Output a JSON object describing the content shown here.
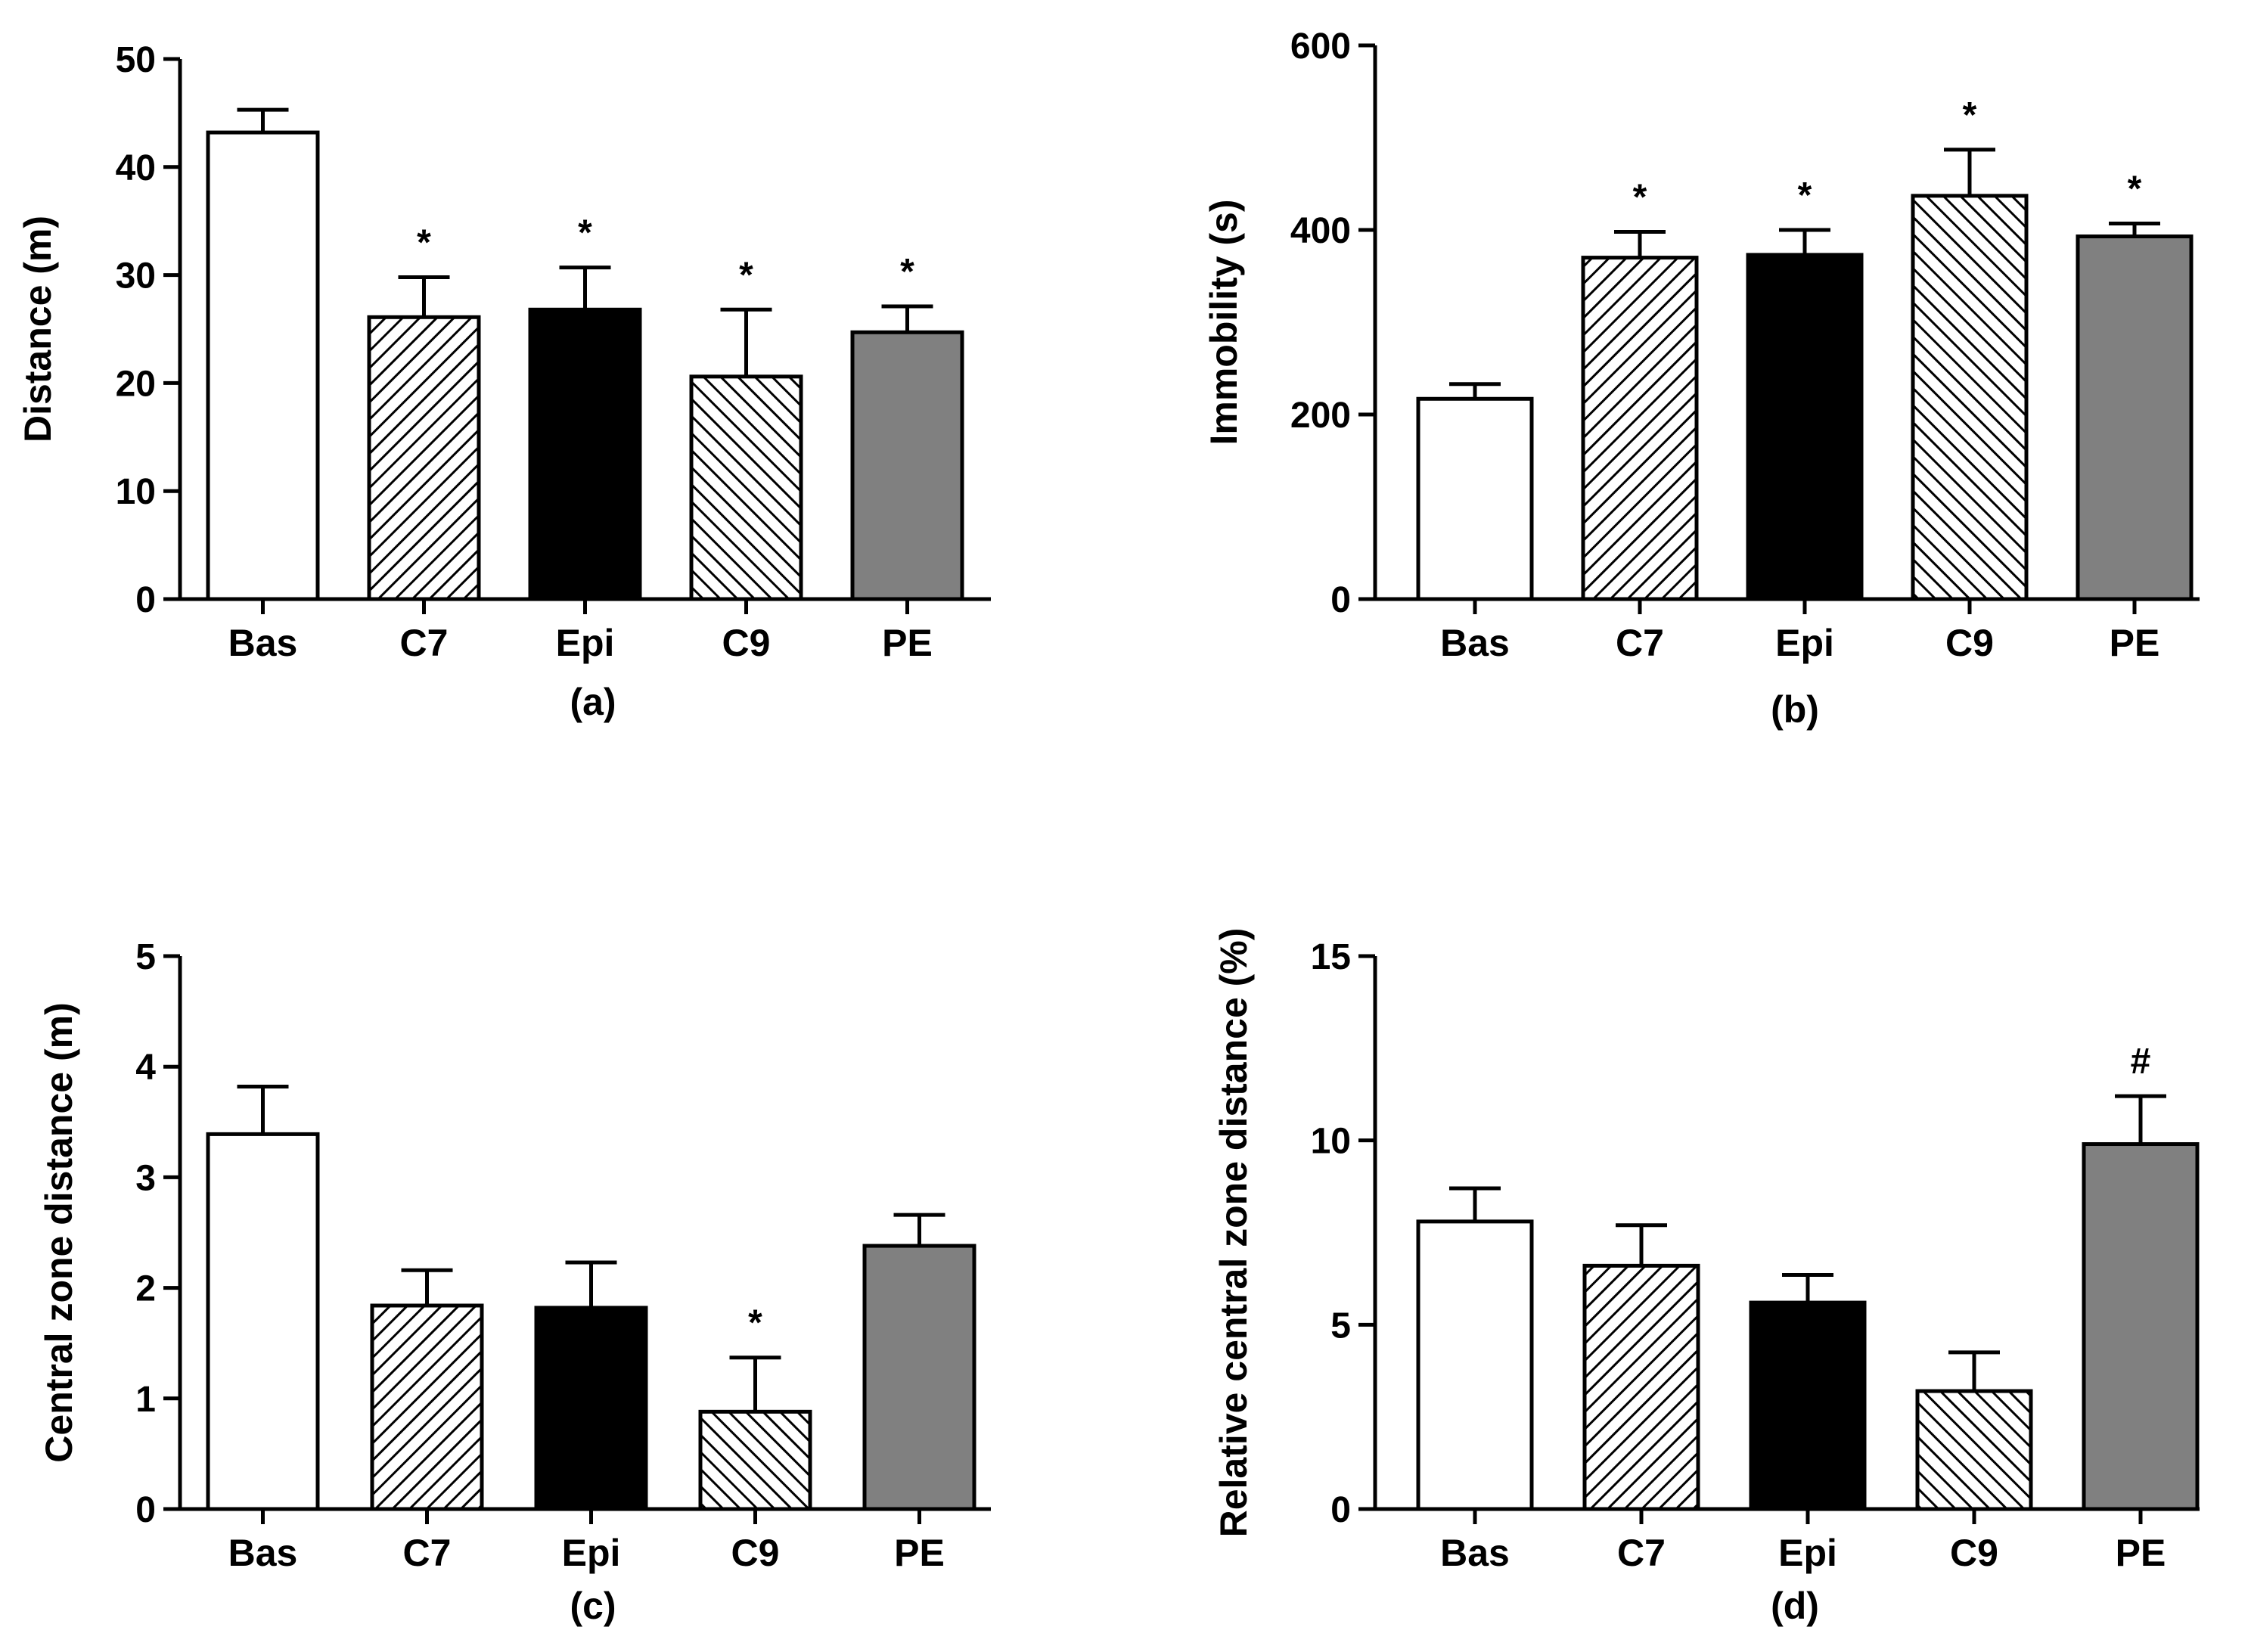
{
  "colors": {
    "Bas": "#ffffff",
    "C7": "hatch-forward",
    "Epi": "#000000",
    "C9": "hatch-back",
    "PE": "#808080"
  },
  "chart_data": [
    {
      "type": "bar",
      "panel": "(a)",
      "ylabel": "Distance (m)",
      "categories": [
        "Bas",
        "C7",
        "Epi",
        "C9",
        "PE"
      ],
      "values": [
        43.2,
        26.1,
        26.8,
        20.6,
        24.7
      ],
      "errors": [
        2.1,
        3.7,
        3.9,
        6.2,
        2.4
      ],
      "sig": [
        "",
        "*",
        "*",
        "*",
        "*"
      ],
      "ylim": [
        0,
        50
      ],
      "yticks": [
        0,
        10,
        20,
        30,
        40,
        50
      ],
      "yticklabels": [
        "0",
        "10",
        "20",
        "30",
        "40",
        "50"
      ]
    },
    {
      "type": "bar",
      "panel": "(b)",
      "ylabel": "Immobility (s)",
      "categories": [
        "Bas",
        "C7",
        "Epi",
        "C9",
        "PE"
      ],
      "values": [
        217,
        370,
        373,
        437,
        393
      ],
      "errors": [
        16,
        28,
        27,
        50,
        14
      ],
      "sig": [
        "",
        "*",
        "*",
        "*",
        "*"
      ],
      "ylim": [
        0,
        600
      ],
      "yticks": [
        0,
        200,
        400,
        600
      ],
      "yticklabels": [
        "0",
        "200",
        "400",
        "600"
      ]
    },
    {
      "type": "bar",
      "panel": "(c)",
      "ylabel": "Central zone distance (m)",
      "categories": [
        "Bas",
        "C7",
        "Epi",
        "C9",
        "PE"
      ],
      "values": [
        3.39,
        1.84,
        1.82,
        0.88,
        2.38
      ],
      "errors": [
        0.43,
        0.32,
        0.41,
        0.49,
        0.28
      ],
      "sig": [
        "",
        "",
        "",
        "*",
        ""
      ],
      "ylim": [
        0,
        5
      ],
      "yticks": [
        0,
        1,
        2,
        3,
        4,
        5
      ],
      "yticklabels": [
        "0",
        "1",
        "2",
        "3",
        "4",
        "5"
      ]
    },
    {
      "type": "bar",
      "panel": "(d)",
      "ylabel": "Relative central zone distance (%)",
      "categories": [
        "Bas",
        "C7",
        "Epi",
        "C9",
        "PE"
      ],
      "values": [
        7.8,
        6.6,
        5.6,
        3.2,
        9.9
      ],
      "errors": [
        0.9,
        1.1,
        0.75,
        1.05,
        1.3
      ],
      "sig": [
        "",
        "",
        "",
        "",
        "#"
      ],
      "ylim": [
        0,
        15
      ],
      "yticks": [
        0,
        5,
        10,
        15
      ],
      "yticklabels": [
        "0",
        "5",
        "10",
        "15"
      ]
    }
  ]
}
